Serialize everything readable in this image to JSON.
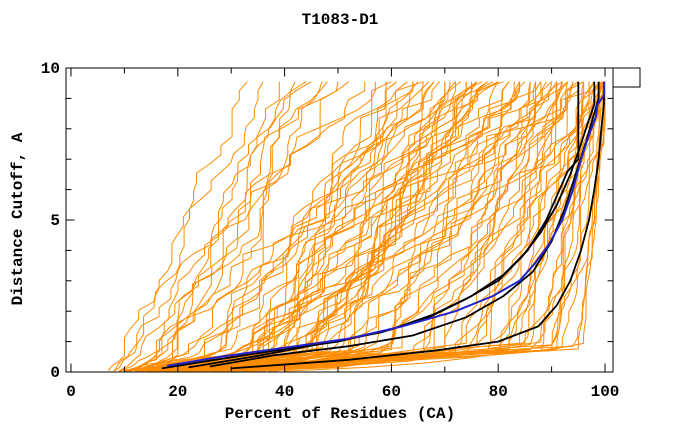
{
  "title": "T1083-D1",
  "background": "#ffffff",
  "chart_data": {
    "type": "line",
    "title": "T1083-D1",
    "xlabel": "Percent of Residues (CA)",
    "ylabel": "Distance Cutoff, A",
    "xlim": [
      0,
      100
    ],
    "ylim": [
      0,
      10
    ],
    "x_major_ticks": [
      0,
      20,
      40,
      60,
      80,
      100
    ],
    "x_minor_step": 10,
    "y_major_ticks": [
      0,
      5,
      10
    ],
    "y_minor_step": 1,
    "grid": false,
    "legend": "none",
    "frame": "box-with-inward-ticks",
    "colors": {
      "models": "#ff8c00",
      "selected": "#000000",
      "best": "#2222cc"
    },
    "series": [
      {
        "name": "model-pool-orange",
        "color_key": "models",
        "kind": "param",
        "description": "ensemble of model accuracy curves; each triple = [percent at cutoff 0, percent reached near cutoff 0.5A, percent at cutoff 9.5A]",
        "curves": [
          [
            7,
            10,
            33
          ],
          [
            8,
            12,
            36
          ],
          [
            9,
            13,
            39
          ],
          [
            10,
            15,
            42
          ],
          [
            8,
            11,
            45
          ],
          [
            11,
            16,
            48
          ],
          [
            12,
            18,
            50
          ],
          [
            9,
            14,
            52
          ],
          [
            13,
            20,
            55
          ],
          [
            10,
            16,
            57
          ],
          [
            14,
            22,
            59
          ],
          [
            11,
            17,
            61
          ],
          [
            12,
            19,
            44
          ],
          [
            13,
            21,
            47
          ],
          [
            9,
            24,
            63
          ],
          [
            15,
            30,
            64
          ],
          [
            10,
            26,
            65
          ],
          [
            18,
            34,
            66
          ],
          [
            12,
            28,
            67
          ],
          [
            20,
            38,
            68
          ],
          [
            14,
            30,
            69
          ],
          [
            22,
            40,
            70
          ],
          [
            16,
            32,
            71
          ],
          [
            24,
            44,
            72
          ],
          [
            11,
            27,
            73
          ],
          [
            19,
            36,
            74
          ],
          [
            13,
            29,
            75
          ],
          [
            21,
            41,
            76
          ],
          [
            15,
            33,
            77
          ],
          [
            23,
            45,
            78
          ],
          [
            17,
            35,
            79
          ],
          [
            25,
            48,
            80
          ],
          [
            12,
            30,
            81
          ],
          [
            20,
            40,
            82
          ],
          [
            14,
            32,
            83
          ],
          [
            22,
            44,
            84
          ],
          [
            16,
            36,
            85
          ],
          [
            26,
            50,
            86
          ],
          [
            18,
            38,
            87
          ],
          [
            28,
            52,
            88
          ],
          [
            10,
            25,
            66
          ],
          [
            17,
            37,
            70
          ],
          [
            23,
            47,
            74
          ],
          [
            13,
            31,
            78
          ],
          [
            21,
            43,
            82
          ],
          [
            15,
            35,
            86
          ],
          [
            27,
            55,
            84
          ],
          [
            19,
            42,
            80
          ],
          [
            25,
            52,
            76
          ],
          [
            16,
            58,
            89
          ],
          [
            24,
            66,
            90
          ],
          [
            12,
            60,
            90
          ],
          [
            28,
            70,
            91
          ],
          [
            18,
            62,
            91
          ],
          [
            30,
            74,
            92
          ],
          [
            14,
            64,
            92
          ],
          [
            26,
            72,
            93
          ],
          [
            20,
            66,
            93
          ],
          [
            32,
            78,
            94
          ],
          [
            15,
            68,
            94
          ],
          [
            27,
            76,
            95
          ],
          [
            21,
            70,
            95
          ],
          [
            33,
            82,
            96
          ],
          [
            17,
            72,
            96
          ],
          [
            29,
            80,
            97
          ],
          [
            23,
            74,
            97
          ],
          [
            35,
            86,
            98
          ],
          [
            19,
            76,
            98
          ],
          [
            31,
            84,
            98
          ],
          [
            25,
            78,
            99
          ],
          [
            37,
            90,
            99
          ],
          [
            16,
            80,
            99
          ],
          [
            28,
            85,
            99.5
          ],
          [
            22,
            82,
            99.5
          ],
          [
            34,
            90,
            99.5
          ],
          [
            18,
            84,
            100
          ],
          [
            30,
            88,
            100
          ],
          [
            24,
            86,
            100
          ],
          [
            36,
            94,
            100
          ],
          [
            20,
            88,
            100
          ],
          [
            32,
            92,
            100
          ],
          [
            26,
            90,
            100
          ],
          [
            38,
            96,
            100
          ],
          [
            22,
            91,
            100
          ],
          [
            40,
            95,
            100
          ],
          [
            12,
            34,
            60
          ],
          [
            16,
            40,
            64
          ],
          [
            20,
            46,
            68
          ],
          [
            24,
            52,
            72
          ],
          [
            14,
            36,
            76
          ],
          [
            18,
            44,
            80
          ],
          [
            22,
            50,
            84
          ],
          [
            26,
            56,
            88
          ],
          [
            13,
            38,
            92
          ],
          [
            17,
            46,
            96
          ],
          [
            21,
            54,
            99
          ],
          [
            25,
            60,
            93
          ],
          [
            19,
            48,
            87
          ],
          [
            23,
            58,
            91
          ],
          [
            15,
            42,
            95
          ]
        ]
      },
      {
        "name": "selected-model-black-1",
        "color_key": "selected",
        "kind": "points",
        "points": [
          [
            17,
            0.12
          ],
          [
            27,
            0.4
          ],
          [
            38,
            0.7
          ],
          [
            50,
            1.0
          ],
          [
            60,
            1.4
          ],
          [
            68,
            1.9
          ],
          [
            75,
            2.5
          ],
          [
            81,
            3.2
          ],
          [
            85.5,
            4.0
          ],
          [
            89,
            5.0
          ],
          [
            91.5,
            6.0
          ],
          [
            93,
            6.6
          ],
          [
            95,
            7.0
          ],
          [
            95,
            9.55
          ]
        ]
      },
      {
        "name": "selected-model-black-2",
        "color_key": "selected",
        "kind": "points",
        "points": [
          [
            22,
            0.15
          ],
          [
            34,
            0.5
          ],
          [
            46,
            0.9
          ],
          [
            58,
            1.3
          ],
          [
            67,
            1.8
          ],
          [
            74,
            2.4
          ],
          [
            80,
            3.0
          ],
          [
            84.5,
            3.8
          ],
          [
            88,
            4.6
          ],
          [
            91,
            5.5
          ],
          [
            93.5,
            6.5
          ],
          [
            95.5,
            7.5
          ],
          [
            96.8,
            8.2
          ],
          [
            98,
            8.8
          ],
          [
            98,
            9.55
          ]
        ]
      },
      {
        "name": "selected-model-black-3",
        "color_key": "selected",
        "kind": "points",
        "points": [
          [
            26,
            0.18
          ],
          [
            38,
            0.55
          ],
          [
            52,
            0.85
          ],
          [
            64,
            1.2
          ],
          [
            74,
            1.8
          ],
          [
            81,
            2.5
          ],
          [
            86.5,
            3.3
          ],
          [
            90,
            4.3
          ],
          [
            92.5,
            5.4
          ],
          [
            94.5,
            6.5
          ],
          [
            96.5,
            7.6
          ],
          [
            97.8,
            8.4
          ],
          [
            98.8,
            9.0
          ],
          [
            98.8,
            9.55
          ]
        ]
      },
      {
        "name": "selected-model-black-4",
        "color_key": "selected",
        "kind": "points",
        "points": [
          [
            30,
            0.12
          ],
          [
            52,
            0.4
          ],
          [
            68,
            0.7
          ],
          [
            80,
            1.0
          ],
          [
            87.5,
            1.5
          ],
          [
            91,
            2.2
          ],
          [
            93.5,
            3.0
          ],
          [
            95.5,
            4.0
          ],
          [
            97,
            5.0
          ],
          [
            98,
            6.0
          ],
          [
            98.8,
            7.0
          ],
          [
            99.3,
            8.0
          ],
          [
            99.8,
            8.8
          ],
          [
            99.8,
            9.55
          ]
        ]
      },
      {
        "name": "best-model-blue",
        "color_key": "best",
        "kind": "points",
        "points": [
          [
            18,
            0.2
          ],
          [
            28,
            0.5
          ],
          [
            40,
            0.8
          ],
          [
            52,
            1.1
          ],
          [
            62,
            1.5
          ],
          [
            72,
            2.0
          ],
          [
            79,
            2.5
          ],
          [
            84,
            3.0
          ],
          [
            87,
            3.6
          ],
          [
            89.5,
            4.2
          ],
          [
            92,
            5.0
          ],
          [
            94,
            6.0
          ],
          [
            95.5,
            7.0
          ],
          [
            97,
            7.8
          ],
          [
            98.3,
            8.4
          ],
          [
            98.6,
            8.8
          ],
          [
            99.8,
            9.1
          ],
          [
            99.8,
            9.55
          ]
        ]
      }
    ]
  }
}
